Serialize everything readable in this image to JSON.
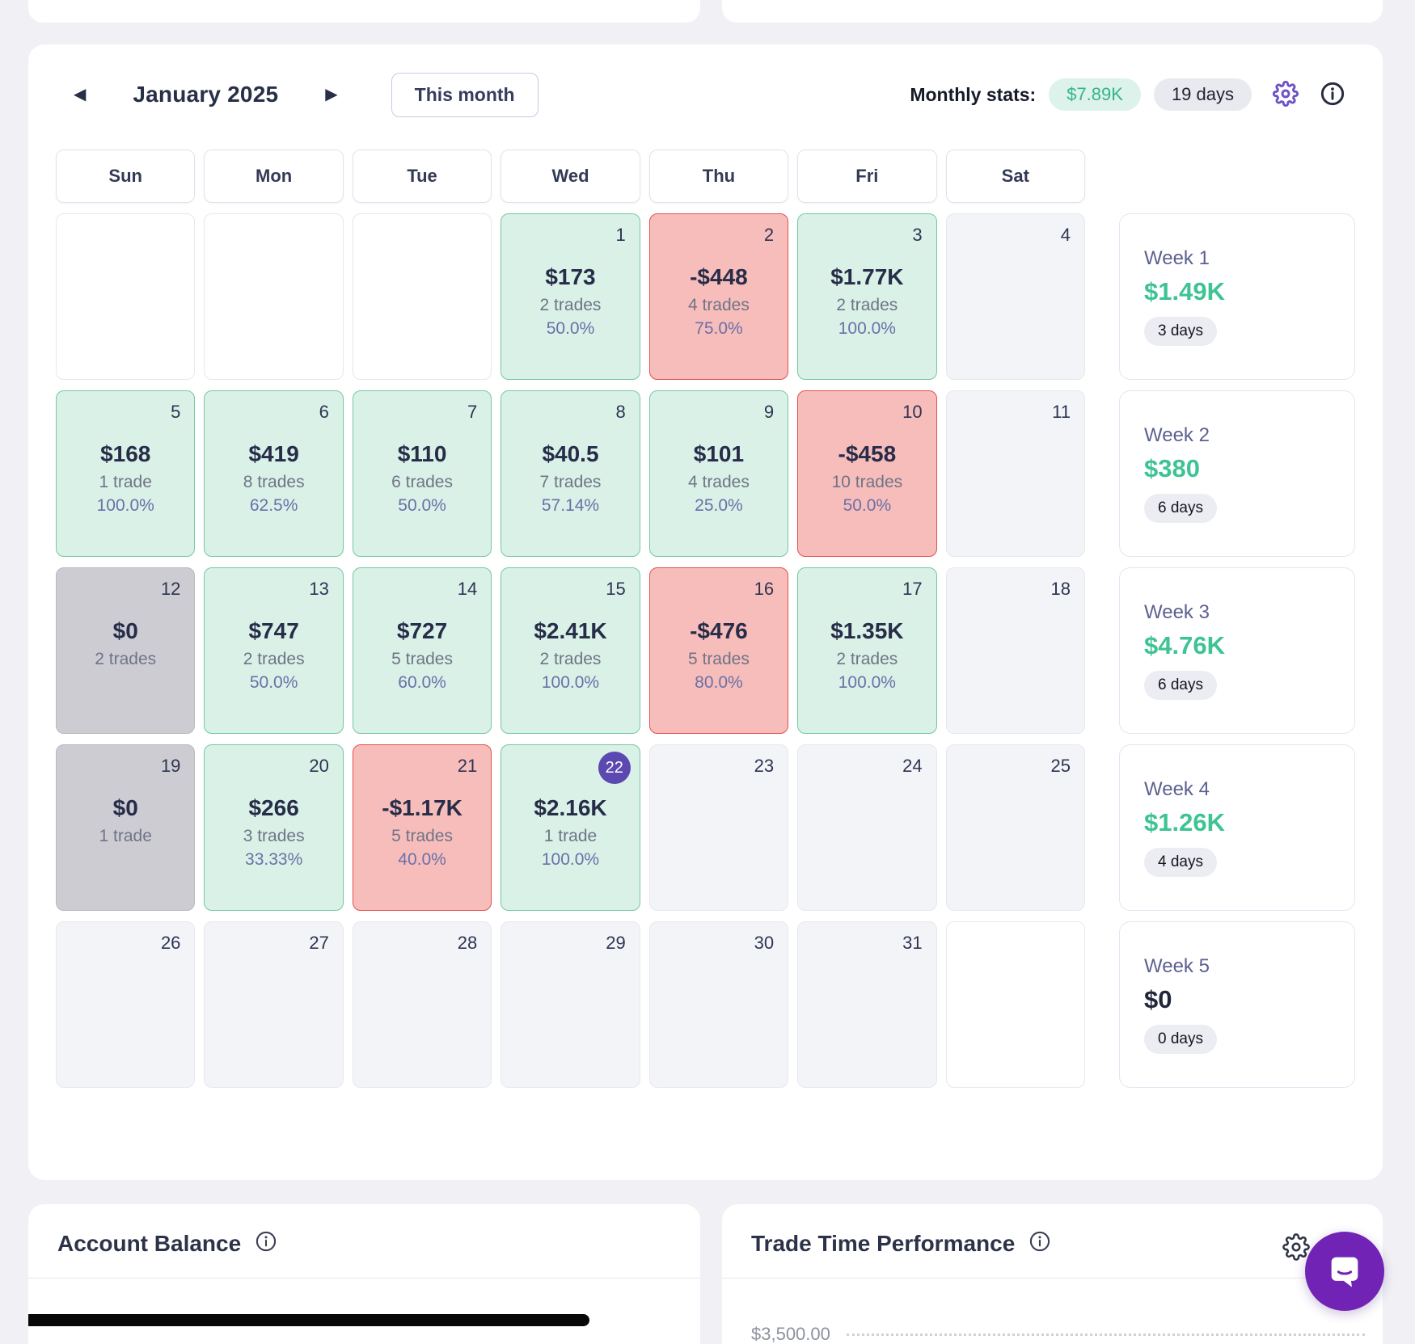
{
  "header": {
    "prev_icon": "◀",
    "next_icon": "▶",
    "title": "January 2025",
    "this_month_label": "This month",
    "stats_label": "Monthly stats:",
    "monthly_pnl": "$7.89K",
    "traded_days": "19 days"
  },
  "calendar": {
    "weekday_headers": [
      "Sun",
      "Mon",
      "Tue",
      "Wed",
      "Thu",
      "Fri",
      "Sat"
    ],
    "cells": [
      {
        "type": "blank"
      },
      {
        "type": "blank"
      },
      {
        "type": "blank"
      },
      {
        "day": "1",
        "type": "win",
        "value": "$173",
        "trades": "2 trades",
        "win_rate": "50.0%"
      },
      {
        "day": "2",
        "type": "loss",
        "value": "-$448",
        "trades": "4 trades",
        "win_rate": "75.0%"
      },
      {
        "day": "3",
        "type": "win",
        "value": "$1.77K",
        "trades": "2 trades",
        "win_rate": "100.0%"
      },
      {
        "day": "4",
        "type": "empty"
      },
      {
        "day": "5",
        "type": "win",
        "value": "$168",
        "trades": "1 trade",
        "win_rate": "100.0%"
      },
      {
        "day": "6",
        "type": "win",
        "value": "$419",
        "trades": "8 trades",
        "win_rate": "62.5%"
      },
      {
        "day": "7",
        "type": "win",
        "value": "$110",
        "trades": "6 trades",
        "win_rate": "50.0%"
      },
      {
        "day": "8",
        "type": "win",
        "value": "$40.5",
        "trades": "7 trades",
        "win_rate": "57.14%"
      },
      {
        "day": "9",
        "type": "win",
        "value": "$101",
        "trades": "4 trades",
        "win_rate": "25.0%"
      },
      {
        "day": "10",
        "type": "loss",
        "value": "-$458",
        "trades": "10 trades",
        "win_rate": "50.0%"
      },
      {
        "day": "11",
        "type": "empty"
      },
      {
        "day": "12",
        "type": "breakeven",
        "value": "$0",
        "trades": "2 trades"
      },
      {
        "day": "13",
        "type": "win",
        "value": "$747",
        "trades": "2 trades",
        "win_rate": "50.0%"
      },
      {
        "day": "14",
        "type": "win",
        "value": "$727",
        "trades": "5 trades",
        "win_rate": "60.0%"
      },
      {
        "day": "15",
        "type": "win",
        "value": "$2.41K",
        "trades": "2 trades",
        "win_rate": "100.0%"
      },
      {
        "day": "16",
        "type": "loss",
        "value": "-$476",
        "trades": "5 trades",
        "win_rate": "80.0%"
      },
      {
        "day": "17",
        "type": "win",
        "value": "$1.35K",
        "trades": "2 trades",
        "win_rate": "100.0%"
      },
      {
        "day": "18",
        "type": "empty"
      },
      {
        "day": "19",
        "type": "breakeven",
        "value": "$0",
        "trades": "1 trade"
      },
      {
        "day": "20",
        "type": "win",
        "value": "$266",
        "trades": "3 trades",
        "win_rate": "33.33%"
      },
      {
        "day": "21",
        "type": "loss",
        "value": "-$1.17K",
        "trades": "5 trades",
        "win_rate": "40.0%"
      },
      {
        "day": "22",
        "type": "win",
        "today": true,
        "value": "$2.16K",
        "trades": "1 trade",
        "win_rate": "100.0%"
      },
      {
        "day": "23",
        "type": "empty"
      },
      {
        "day": "24",
        "type": "empty"
      },
      {
        "day": "25",
        "type": "empty"
      },
      {
        "day": "26",
        "type": "empty"
      },
      {
        "day": "27",
        "type": "empty"
      },
      {
        "day": "28",
        "type": "empty"
      },
      {
        "day": "29",
        "type": "empty"
      },
      {
        "day": "30",
        "type": "empty"
      },
      {
        "day": "31",
        "type": "empty"
      },
      {
        "type": "blank"
      }
    ],
    "weeks": [
      {
        "label": "Week 1",
        "value": "$1.49K",
        "days": "3 days",
        "tone": "positive"
      },
      {
        "label": "Week 2",
        "value": "$380",
        "days": "6 days",
        "tone": "positive"
      },
      {
        "label": "Week 3",
        "value": "$4.76K",
        "days": "6 days",
        "tone": "positive"
      },
      {
        "label": "Week 4",
        "value": "$1.26K",
        "days": "4 days",
        "tone": "positive"
      },
      {
        "label": "Week 5",
        "value": "$0",
        "days": "0 days",
        "tone": "neutral"
      }
    ]
  },
  "account_balance": {
    "title": "Account Balance"
  },
  "trade_time": {
    "title": "Trade Time Performance",
    "axis_label": "$3,500.00"
  },
  "colors": {
    "win_bg": "#d9f1e6",
    "win_border": "#75c9a2",
    "loss_bg": "#f7bdba",
    "loss_border": "#e2524e",
    "breakeven_bg": "#cdccd2",
    "empty_bg": "#f3f4f7",
    "accent_purple": "#6d54c6",
    "today_badge": "#5b48b0",
    "positive_green": "#3ec394",
    "chat_purple": "#7123b5"
  }
}
